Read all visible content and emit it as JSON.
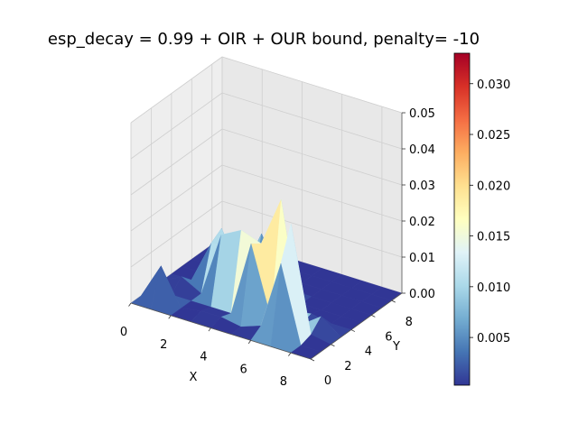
{
  "chart_data": {
    "type": "surface3d",
    "title": "esp_decay = 0.99 + OIR + OUR bound, penalty= -10",
    "xlabel": "X",
    "ylabel": "Y",
    "zlabel": "",
    "x_ticks": [
      "0",
      "2",
      "4",
      "6",
      "8"
    ],
    "y_ticks": [
      "0",
      "2",
      "4",
      "6",
      "8"
    ],
    "z_ticks": [
      "0.00",
      "0.01",
      "0.02",
      "0.03",
      "0.04",
      "0.05"
    ],
    "xlim": [
      0,
      9
    ],
    "ylim": [
      0,
      9
    ],
    "zlim": [
      0,
      0.05
    ],
    "grid": true,
    "colormap": "RdYlBu_r",
    "colorbar": {
      "range": [
        0.0003,
        0.033
      ],
      "ticks": [
        "0.005",
        "0.010",
        "0.015",
        "0.020",
        "0.025",
        "0.030"
      ],
      "colors": [
        "#313695",
        "#4575b4",
        "#74add1",
        "#abd9e9",
        "#e0f3f8",
        "#ffffbf",
        "#fee090",
        "#fdae61",
        "#f46d43",
        "#d73027",
        "#a50026"
      ]
    },
    "z": [
      [
        0.0,
        0.0,
        0.0,
        0.0,
        0.0,
        0.0,
        0.0,
        0.0,
        0.0,
        0.0
      ],
      [
        0.0,
        0.01,
        0.0,
        0.003,
        0.0,
        0.0,
        0.0,
        0.0,
        0.0,
        0.0
      ],
      [
        0.0,
        0.0,
        0.0,
        0.0,
        0.012,
        0.014,
        0.0,
        0.0,
        0.0,
        0.0
      ],
      [
        0.0,
        0.001,
        0.0,
        0.018,
        0.013,
        0.003,
        0.0,
        0.0,
        0.0,
        0.0
      ],
      [
        0.0,
        0.001,
        0.0,
        0.021,
        0.0,
        0.016,
        0.0,
        0.0,
        0.0,
        0.0
      ],
      [
        0.0,
        0.0,
        0.021,
        0.019,
        0.0,
        0.005,
        0.0,
        0.0,
        0.0,
        0.0
      ],
      [
        0.0,
        0.002,
        0.002,
        0.033,
        0.0,
        0.0,
        0.0,
        0.0,
        0.0,
        0.0
      ],
      [
        0.0,
        0.021,
        0.03,
        0.0,
        0.001,
        0.0,
        0.0,
        0.0,
        0.0,
        0.0
      ],
      [
        0.0,
        0.0,
        0.001,
        0.004,
        0.0,
        0.0,
        0.0,
        0.0,
        0.0,
        0.0
      ],
      [
        0.0,
        0.0,
        0.0,
        0.0,
        0.0,
        0.0,
        0.0,
        0.0,
        0.0,
        0.0
      ]
    ]
  }
}
